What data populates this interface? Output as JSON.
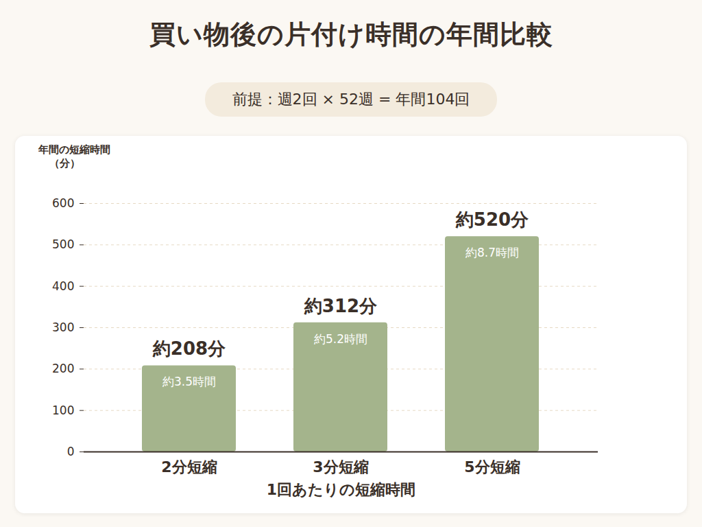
{
  "chart_data": {
    "type": "bar",
    "title": "買い物後の片付け時間の年間比較",
    "subtitle": "前提：週2回 × 52週 = 年間104回",
    "y_label": "年間の短縮時間（分）",
    "x_label": "1回あたりの短縮時間",
    "categories": [
      "2分短縮",
      "3分短縮",
      "5分短縮"
    ],
    "values": [
      208,
      312,
      520
    ],
    "value_labels": [
      "約208分",
      "約312分",
      "約520分"
    ],
    "hour_labels": [
      "約3.5時間",
      "約5.2時間",
      "約8.7時間"
    ],
    "color": "#a4b48c",
    "ylim": [
      0,
      600
    ],
    "yticks": [
      0,
      100,
      200,
      300,
      400,
      500,
      600
    ],
    "grid": true,
    "data_labels": true
  }
}
